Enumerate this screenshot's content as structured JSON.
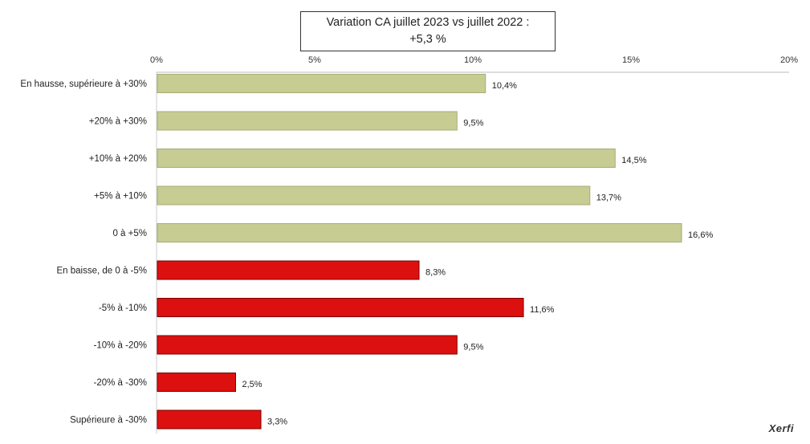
{
  "chart_data": {
    "type": "bar",
    "orientation": "horizontal",
    "title_line1": "Variation CA juillet 2023 vs juillet 2022 :",
    "title_line2": "+5,3 %",
    "xlim": [
      0,
      20
    ],
    "x_ticks": [
      "0%",
      "5%",
      "10%",
      "15%",
      "20%"
    ],
    "categories": [
      "En hausse, supérieure à +30%",
      "+20% à +30%",
      "+10% à +20%",
      "+5% à +10%",
      "0 à +5%",
      "En baisse, de 0 à -5%",
      "-5% à -10%",
      "-10% à -20%",
      "-20% à -30%",
      "Supérieure à -30%"
    ],
    "values": [
      10.4,
      9.5,
      14.5,
      13.7,
      16.6,
      8.3,
      11.6,
      9.5,
      2.5,
      3.3
    ],
    "value_labels": [
      "10,4%",
      "9,5%",
      "14,5%",
      "13,7%",
      "16,6%",
      "8,3%",
      "11,6%",
      "9,5%",
      "2,5%",
      "3,3%"
    ],
    "bar_colors": [
      "#c6cc92",
      "#c6cc92",
      "#c6cc92",
      "#c6cc92",
      "#c6cc92",
      "#dd1010",
      "#dd1010",
      "#dd1010",
      "#dd1010",
      "#dd1010"
    ],
    "grid": false,
    "legend": "none"
  },
  "brand": "Xerfi"
}
